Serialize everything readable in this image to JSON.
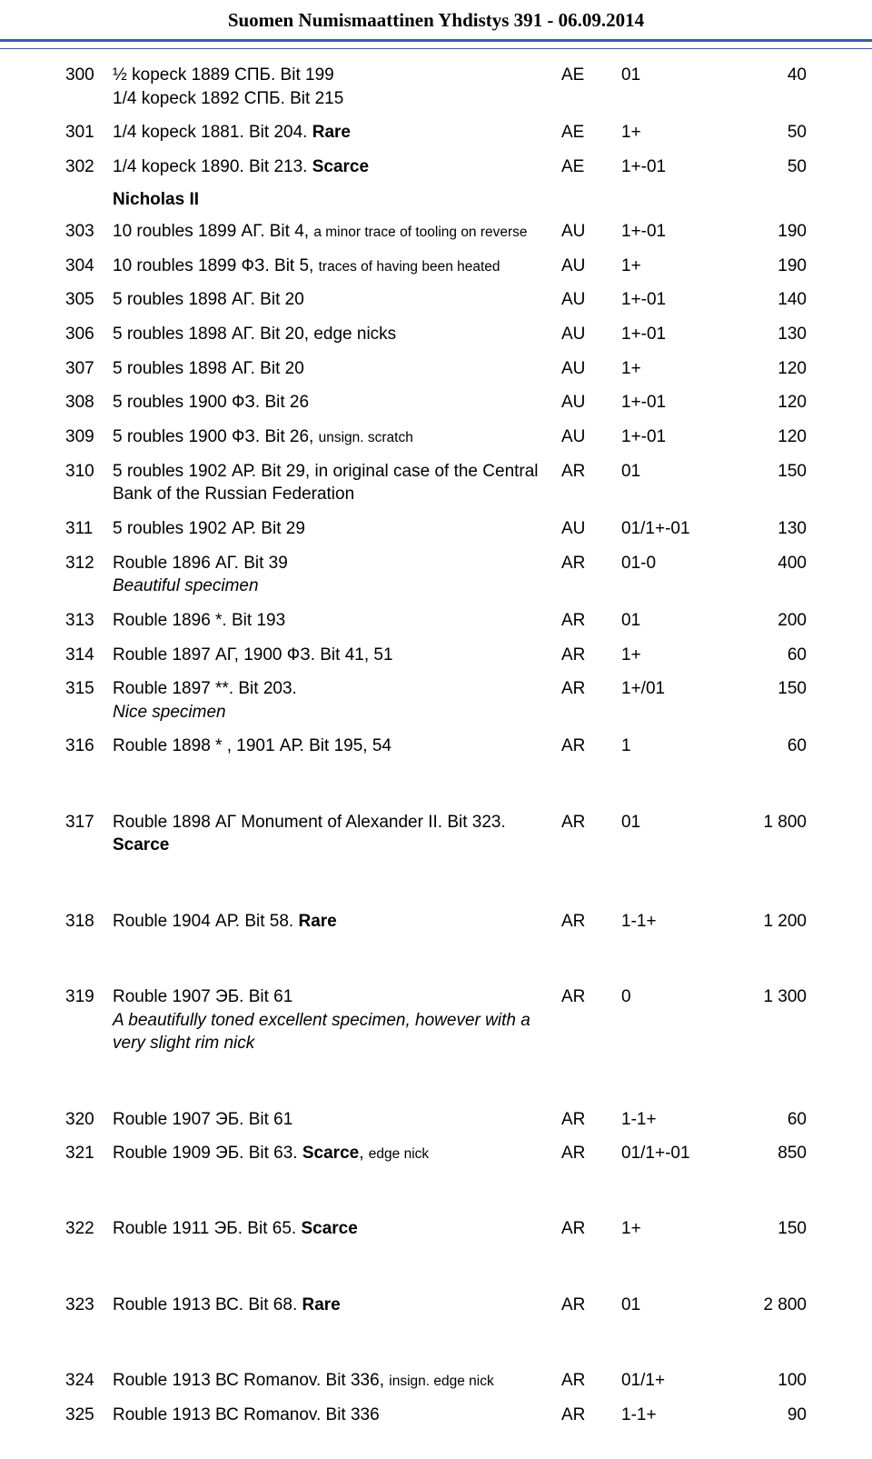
{
  "page_title": "Suomen Numismaattinen Yhdistys  391 - 06.09.2014",
  "section_header": "Nicholas II",
  "rows": [
    {
      "lot": "300",
      "desc_parts": [
        {
          "t": "½ kopeck 1889 СПБ. Bit 199"
        },
        {
          "br": true
        },
        {
          "t": "1/4 kopeck 1892 СПБ. Bit 215"
        }
      ],
      "metal": "AE",
      "grade": "01",
      "price": "40"
    },
    {
      "lot": "301",
      "desc_parts": [
        {
          "t": "1/4 kopeck 1881. Bit 204. "
        },
        {
          "t": "Rare",
          "bold": true
        }
      ],
      "metal": "AE",
      "grade": "1+",
      "price": "50"
    },
    {
      "lot": "302",
      "desc_parts": [
        {
          "t": "1/4 kopeck 1890. Bit 213. "
        },
        {
          "t": "Scarce",
          "bold": true
        }
      ],
      "metal": "AE",
      "grade": "1+-01",
      "price": "50"
    },
    {
      "section": true
    },
    {
      "lot": "303",
      "desc_parts": [
        {
          "t": "10 roubles 1899 АГ. Bit 4, "
        },
        {
          "t": "a minor trace of tooling on reverse",
          "small": true
        }
      ],
      "metal": "AU",
      "grade": "1+-01",
      "price": "190"
    },
    {
      "lot": "304",
      "desc_parts": [
        {
          "t": "10 roubles 1899 ФЗ. Bit 5, "
        },
        {
          "t": "traces of having been heated",
          "small": true
        }
      ],
      "metal": "AU",
      "grade": "1+",
      "price": "190"
    },
    {
      "lot": "305",
      "desc_parts": [
        {
          "t": "5 roubles 1898 АГ. Bit 20"
        }
      ],
      "metal": "AU",
      "grade": "1+-01",
      "price": "140"
    },
    {
      "lot": "306",
      "desc_parts": [
        {
          "t": "5 roubles 1898 АГ. Bit 20, edge nicks"
        }
      ],
      "metal": "AU",
      "grade": "1+-01",
      "price": "130"
    },
    {
      "lot": "307",
      "desc_parts": [
        {
          "t": "5 roubles 1898 АГ. Bit 20"
        }
      ],
      "metal": "AU",
      "grade": "1+",
      "price": "120"
    },
    {
      "lot": "308",
      "desc_parts": [
        {
          "t": "5 roubles 1900 ФЗ. Bit 26"
        }
      ],
      "metal": "AU",
      "grade": "1+-01",
      "price": "120"
    },
    {
      "lot": "309",
      "desc_parts": [
        {
          "t": "5 roubles 1900 ФЗ. Bit 26, "
        },
        {
          "t": "unsign. scratch",
          "small": true
        }
      ],
      "metal": "AU",
      "grade": "1+-01",
      "price": "120"
    },
    {
      "lot": "310",
      "desc_parts": [
        {
          "t": "5 roubles 1902 АР. Bit 29, in original case of the Central Bank of the Russian Federation"
        }
      ],
      "metal": "AR",
      "grade": "01",
      "price": "150"
    },
    {
      "lot": "311",
      "desc_parts": [
        {
          "t": "5 roubles 1902 АР. Bit 29"
        }
      ],
      "metal": "AU",
      "grade": "01/1+-01",
      "price": "130"
    },
    {
      "lot": "312",
      "desc_parts": [
        {
          "t": "Rouble 1896 АГ. Bit 39"
        },
        {
          "br": true
        },
        {
          "t": "Beautiful specimen",
          "italic": true
        }
      ],
      "metal": "AR",
      "grade": "01-0",
      "price": "400"
    },
    {
      "lot": "313",
      "desc_parts": [
        {
          "t": "Rouble 1896 *. Bit 193"
        }
      ],
      "metal": "AR",
      "grade": "01",
      "price": "200"
    },
    {
      "lot": "314",
      "desc_parts": [
        {
          "t": "Rouble 1897 АГ, 1900 ФЗ. Bit 41, 51"
        }
      ],
      "metal": "AR",
      "grade": "1+",
      "price": "60"
    },
    {
      "lot": "315",
      "desc_parts": [
        {
          "t": "Rouble 1897 **. Bit 203."
        },
        {
          "br": true
        },
        {
          "t": "Nice specimen",
          "italic": true
        }
      ],
      "metal": "AR",
      "grade": "1+/01",
      "price": "150"
    },
    {
      "lot": "316",
      "desc_parts": [
        {
          "t": "Rouble 1898 * , 1901 АР. Bit 195, 54"
        }
      ],
      "metal": "AR",
      "grade": "1",
      "price": "60"
    },
    {
      "spacer": true
    },
    {
      "lot": "317",
      "desc_parts": [
        {
          "t": "Rouble 1898 АГ Monument of Alexander II. Bit 323."
        },
        {
          "br": true
        },
        {
          "t": "Scarce",
          "bold": true
        }
      ],
      "metal": "AR",
      "grade": "01",
      "price": "1 800"
    },
    {
      "spacer": true
    },
    {
      "lot": "318",
      "desc_parts": [
        {
          "t": "Rouble 1904 АР. Bit 58. "
        },
        {
          "t": "Rare",
          "bold": true
        }
      ],
      "metal": "AR",
      "grade": "1-1+",
      "price": "1 200"
    },
    {
      "spacer": true
    },
    {
      "lot": "319",
      "desc_parts": [
        {
          "t": "Rouble 1907 ЭБ. Bit 61"
        },
        {
          "br": true
        },
        {
          "t": "A beautifully toned excellent specimen, however with a very slight rim nick",
          "italic": true
        }
      ],
      "metal": "AR",
      "grade": "0",
      "price": "1 300"
    },
    {
      "spacer": true
    },
    {
      "lot": "320",
      "desc_parts": [
        {
          "t": "Rouble 1907 ЭБ. Bit 61"
        }
      ],
      "metal": "AR",
      "grade": "1-1+",
      "price": "60"
    },
    {
      "lot": "321",
      "desc_parts": [
        {
          "t": "Rouble 1909 ЭБ. Bit 63. "
        },
        {
          "t": "Scarce",
          "bold": true
        },
        {
          "t": ", "
        },
        {
          "t": "edge nick",
          "small": true
        }
      ],
      "metal": "AR",
      "grade": "01/1+-01",
      "price": "850"
    },
    {
      "spacer": true
    },
    {
      "lot": "322",
      "desc_parts": [
        {
          "t": "Rouble 1911 ЭБ. Bit 65. "
        },
        {
          "t": "Scarce",
          "bold": true
        }
      ],
      "metal": "AR",
      "grade": "1+",
      "price": "150"
    },
    {
      "spacer": true
    },
    {
      "lot": "323",
      "desc_parts": [
        {
          "t": "Rouble 1913 ВС. Bit 68. "
        },
        {
          "t": "Rare",
          "bold": true
        }
      ],
      "metal": "AR",
      "grade": "01",
      "price": "2 800"
    },
    {
      "spacer": true
    },
    {
      "lot": "324",
      "desc_parts": [
        {
          "t": "Rouble 1913 ВС Romanov. Bit 336, "
        },
        {
          "t": "insign. edge nick",
          "small": true
        }
      ],
      "metal": "AR",
      "grade": "01/1+",
      "price": "100"
    },
    {
      "lot": "325",
      "desc_parts": [
        {
          "t": "Rouble 1913 ВС Romanov. Bit 336"
        }
      ],
      "metal": "AR",
      "grade": "1-1+",
      "price": "90"
    }
  ]
}
